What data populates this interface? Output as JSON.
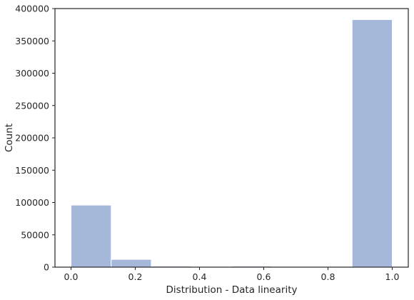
{
  "chart_data": {
    "type": "bar",
    "title": "",
    "xlabel": "Distribution - Data linearity",
    "ylabel": "Count",
    "xlim": [
      -0.05,
      1.05
    ],
    "ylim": [
      0,
      400000
    ],
    "x_ticks": [
      "0.0",
      "0.2",
      "0.4",
      "0.6",
      "0.8",
      "1.0"
    ],
    "y_ticks": [
      "0",
      "50000",
      "100000",
      "150000",
      "200000",
      "250000",
      "300000",
      "350000",
      "400000"
    ],
    "bins": [
      {
        "x0": 0.0,
        "x1": 0.125,
        "value": 96000
      },
      {
        "x0": 0.125,
        "x1": 0.25,
        "value": 12000
      },
      {
        "x0": 0.25,
        "x1": 0.375,
        "value": 1500
      },
      {
        "x0": 0.375,
        "x1": 0.5,
        "value": 0
      },
      {
        "x0": 0.5,
        "x1": 0.625,
        "value": 1500
      },
      {
        "x0": 0.625,
        "x1": 0.75,
        "value": 0
      },
      {
        "x0": 0.75,
        "x1": 0.875,
        "value": 0
      },
      {
        "x0": 0.875,
        "x1": 1.0,
        "value": 383000
      }
    ],
    "bar_color": "#a5b8d9",
    "bar_edge_color": "#ffffff",
    "grid": false,
    "legend": "none"
  }
}
